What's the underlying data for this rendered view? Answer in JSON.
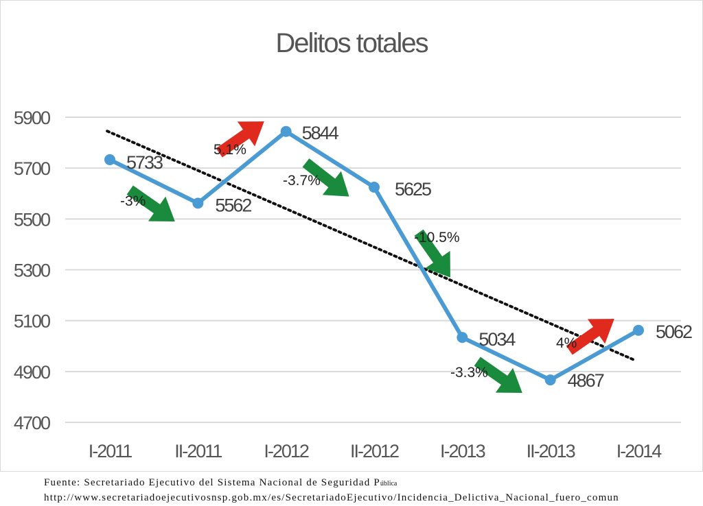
{
  "chart_data": {
    "type": "line",
    "title": "Delitos totales",
    "categories": [
      "I-2011",
      "II-2011",
      "I-2012",
      "II-2012",
      "I-2013",
      "II-2013",
      "I-2014"
    ],
    "series": [
      {
        "values": [
          5733,
          5562,
          5844,
          5625,
          5034,
          4867,
          5062
        ],
        "color": "#4a9bd4"
      }
    ],
    "data_labels": [
      "5733",
      "5562",
      "5844",
      "5625",
      "5034",
      "4867",
      "5062"
    ],
    "trendline": {
      "type": "linear",
      "style": "dotted",
      "color": "#111111"
    },
    "change_annotations": [
      {
        "text": "-3%",
        "direction": "down",
        "color": "#1a8a3c"
      },
      {
        "text": "5.1%",
        "direction": "up",
        "color": "#e02a1e"
      },
      {
        "text": "-3.7%",
        "direction": "down",
        "color": "#1a8a3c"
      },
      {
        "text": "-10.5%",
        "direction": "down",
        "color": "#1a8a3c"
      },
      {
        "text": "-3.3%",
        "direction": "down",
        "color": "#1a8a3c"
      },
      {
        "text": "4%",
        "direction": "up",
        "color": "#e02a1e"
      }
    ],
    "y_ticks": [
      "5900",
      "5700",
      "5500",
      "5300",
      "5100",
      "4900",
      "4700"
    ],
    "ylim": [
      4700,
      5900
    ],
    "grid": true,
    "legend": "none"
  },
  "source": {
    "line1_main": "Fuente: Secretariado Ejecutivo del Sistema Nacional de Seguridad P",
    "line1_small": "ública",
    "line2": "http://www.secretariadoejecutivosnsp.gob.mx/es/SecretariadoEjecutivo/Incidencia_Delictiva_Nacional_fuero_comun"
  }
}
